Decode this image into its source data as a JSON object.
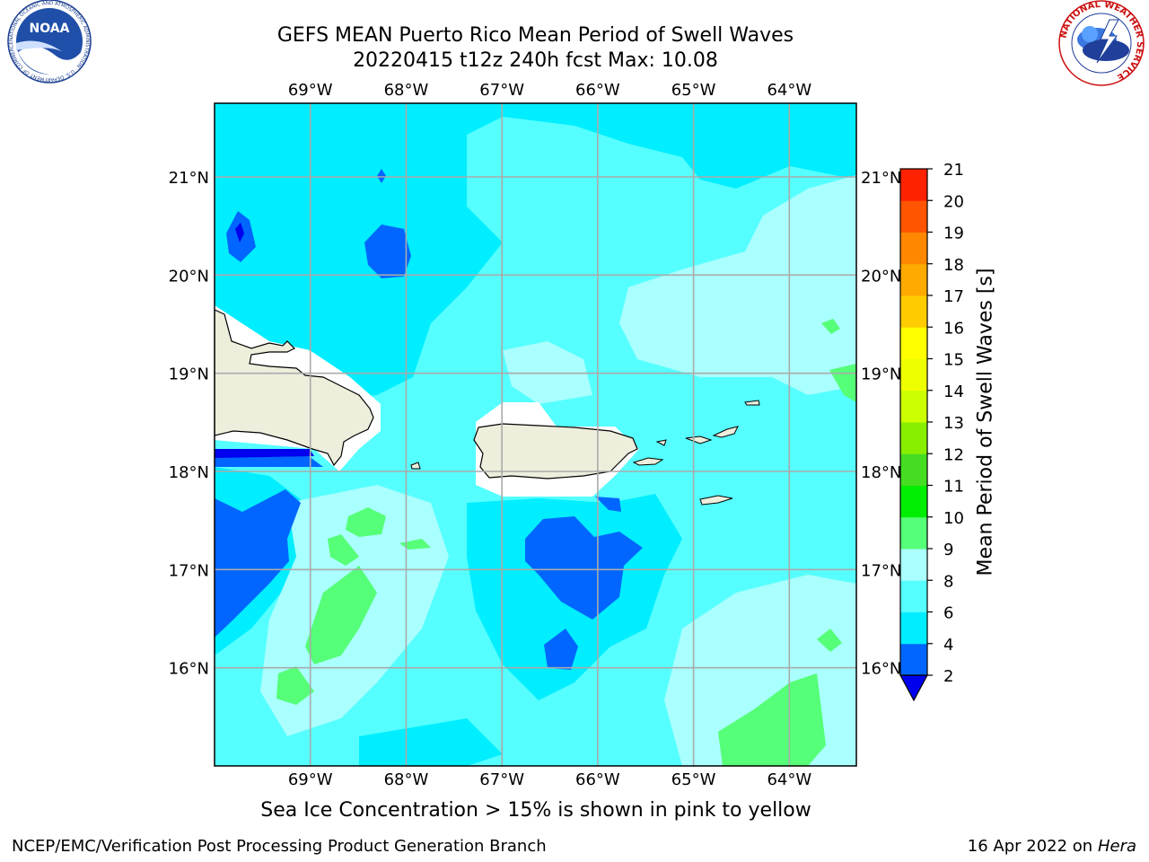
{
  "header": {
    "title_line1": "GEFS MEAN Puerto Rico Mean Period of Swell Waves",
    "title_line2": "20220415 t12z 240h fcst   Max: 10.08"
  },
  "logos": {
    "left": "noaa-logo",
    "left_text": "NOAA",
    "left_ring_text": "NATIONAL OCEANIC AND ATMOSPHERIC ADMINISTRATION · U.S. DEPARTMENT OF COMMERCE",
    "right": "national-weather-service-logo",
    "right_ring_text": "NATIONAL WEATHER SERVICE"
  },
  "map": {
    "lon_range": [
      -70.0,
      -63.3
    ],
    "lat_range": [
      15.0,
      21.75
    ],
    "lon_ticks": [
      -69,
      -68,
      -67,
      -66,
      -65,
      -64
    ],
    "lat_ticks": [
      16,
      17,
      18,
      19,
      20,
      21
    ],
    "lon_tick_labels": [
      "69°W",
      "68°W",
      "67°W",
      "66°W",
      "65°W",
      "64°W"
    ],
    "lat_tick_labels": [
      "16°N",
      "17°N",
      "18°N",
      "19°N",
      "20°N",
      "21°N"
    ],
    "gridlines": true,
    "base_color": "#55ffff"
  },
  "colorbar": {
    "label": "Mean Period of Swell Waves [s]",
    "extend": "min",
    "tick_labels": [
      "2",
      "4",
      "6",
      "8",
      "9",
      "10",
      "11",
      "12",
      "13",
      "14",
      "15",
      "16",
      "17",
      "18",
      "19",
      "20",
      "21"
    ],
    "colors": [
      "#0066ff",
      "#00eeff",
      "#55ffff",
      "#aaffff",
      "#55ff77",
      "#00ee00",
      "#44dd22",
      "#88ee00",
      "#ccff00",
      "#eeff00",
      "#ffff00",
      "#ffcc00",
      "#ffaa00",
      "#ff8800",
      "#ff5500",
      "#ff2200"
    ],
    "under_color": "#0000ee"
  },
  "land_color": "#eeeedd",
  "subtitle": "Sea Ice Concentration > 15% is shown in pink to yellow",
  "footer": {
    "left": "NCEP/EMC/Verification Post Processing Product Generation Branch",
    "right_prefix": "16 Apr 2022 on ",
    "right_host": "Hera"
  }
}
